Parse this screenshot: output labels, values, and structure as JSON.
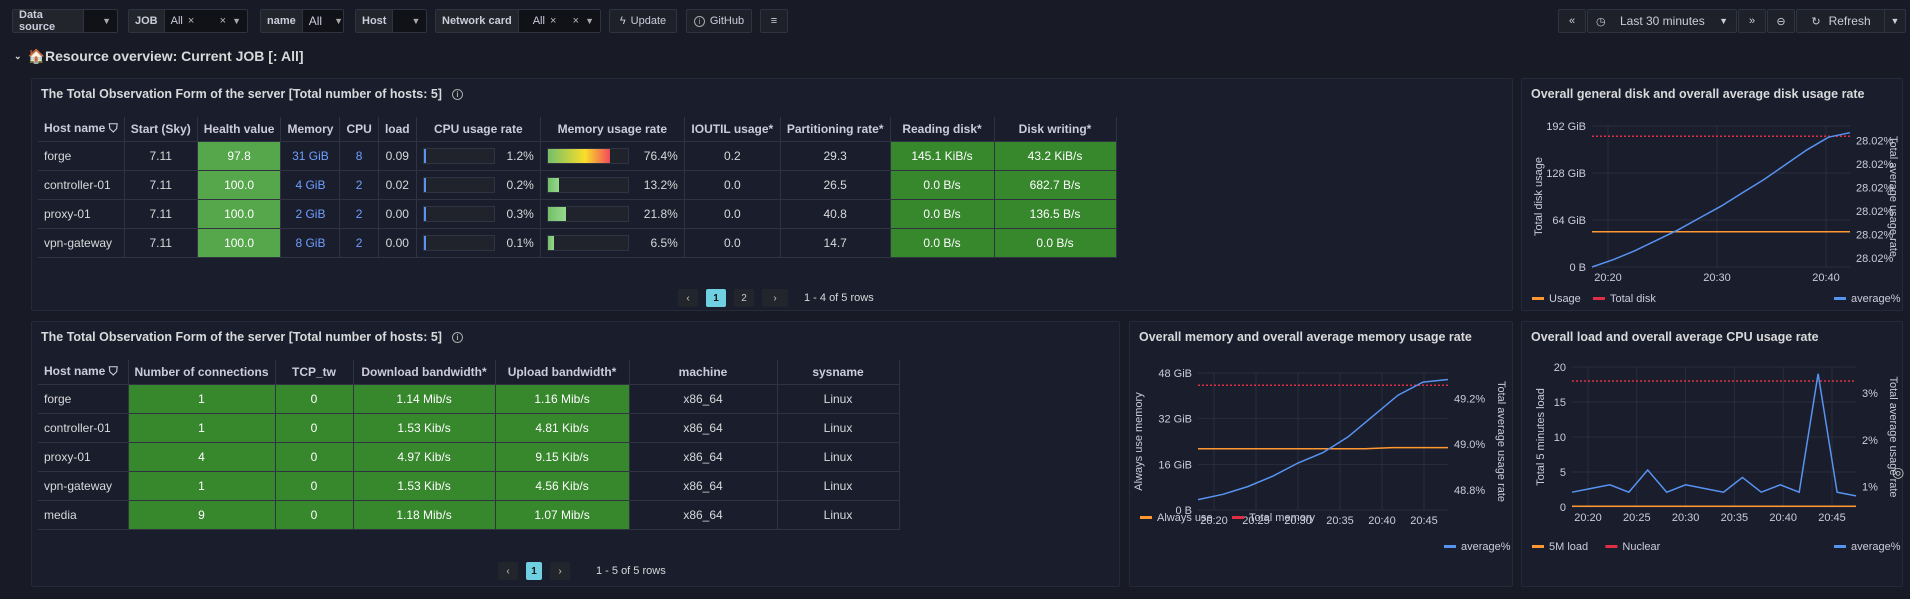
{
  "toolbar": {
    "data_source": {
      "label": "Data source",
      "value": ""
    },
    "job": {
      "label": "JOB",
      "value": "All"
    },
    "name": {
      "label": "name",
      "value": "All"
    },
    "host": {
      "label": "Host",
      "value": ""
    },
    "network_card": {
      "label": "Network card",
      "value": "All"
    },
    "update_label": "Update",
    "github_label": "GitHub",
    "time_range": "Last 30 minutes",
    "refresh_label": "Refresh"
  },
  "section": {
    "title": "🏠Resource overview: Current JOB [: All]"
  },
  "host_table": {
    "title": "The Total Observation Form of the server [Total number of hosts: 5]",
    "columns": [
      "Host name",
      "Start (Sky)",
      "Health value",
      "Memory",
      "CPU",
      "load",
      "CPU usage rate",
      "Memory usage rate",
      "IOUTIL usage*",
      "Partitioning rate*",
      "Reading disk*",
      "Disk writing*"
    ],
    "rows": [
      {
        "host": "forge",
        "start": "7.11",
        "health": "97.8",
        "memory": "31 GiB",
        "cpu": "8",
        "load": "0.09",
        "cpu_rate": "1.2%",
        "cpu_frac": 0.012,
        "mem_rate": "76.4%",
        "mem_frac": 0.764,
        "ioutil": "0.2",
        "part": "29.3",
        "read": "145.1 KiB/s",
        "write": "43.2 KiB/s"
      },
      {
        "host": "controller-01",
        "start": "7.11",
        "health": "100.0",
        "memory": "4 GiB",
        "cpu": "2",
        "load": "0.02",
        "cpu_rate": "0.2%",
        "cpu_frac": 0.002,
        "mem_rate": "13.2%",
        "mem_frac": 0.132,
        "ioutil": "0.0",
        "part": "26.5",
        "read": "0.0 B/s",
        "write": "682.7 B/s"
      },
      {
        "host": "proxy-01",
        "start": "7.11",
        "health": "100.0",
        "memory": "2 GiB",
        "cpu": "2",
        "load": "0.00",
        "cpu_rate": "0.3%",
        "cpu_frac": 0.003,
        "mem_rate": "21.8%",
        "mem_frac": 0.218,
        "ioutil": "0.0",
        "part": "40.8",
        "read": "0.0 B/s",
        "write": "136.5 B/s"
      },
      {
        "host": "vpn-gateway",
        "start": "7.11",
        "health": "100.0",
        "memory": "8 GiB",
        "cpu": "2",
        "load": "0.00",
        "cpu_rate": "0.1%",
        "cpu_frac": 0.001,
        "mem_rate": "6.5%",
        "mem_frac": 0.065,
        "ioutil": "0.0",
        "part": "14.7",
        "read": "0.0 B/s",
        "write": "0.0 B/s"
      }
    ],
    "pager": {
      "pages": [
        "1",
        "2"
      ],
      "current": "1",
      "summary": "1 - 4 of 5 rows"
    }
  },
  "net_table": {
    "title": "The Total Observation Form of the server [Total number of hosts: 5]",
    "columns": [
      "Host name",
      "Number of connections",
      "TCP_tw",
      "Download bandwidth*",
      "Upload bandwidth*",
      "machine",
      "sysname"
    ],
    "rows": [
      {
        "host": "forge",
        "conn": "1",
        "tcp": "0",
        "down": "1.14 Mib/s",
        "up": "1.16 Mib/s",
        "machine": "x86_64",
        "sys": "Linux"
      },
      {
        "host": "controller-01",
        "conn": "1",
        "tcp": "0",
        "down": "1.53 Kib/s",
        "up": "4.81 Kib/s",
        "machine": "x86_64",
        "sys": "Linux"
      },
      {
        "host": "proxy-01",
        "conn": "4",
        "tcp": "0",
        "down": "4.97 Kib/s",
        "up": "9.15 Kib/s",
        "machine": "x86_64",
        "sys": "Linux"
      },
      {
        "host": "vpn-gateway",
        "conn": "1",
        "tcp": "0",
        "down": "1.53 Kib/s",
        "up": "4.56 Kib/s",
        "machine": "x86_64",
        "sys": "Linux"
      },
      {
        "host": "media",
        "conn": "9",
        "tcp": "0",
        "down": "1.18 Mib/s",
        "up": "1.07 Mib/s",
        "machine": "x86_64",
        "sys": "Linux"
      }
    ],
    "pager": {
      "pages": [
        "1"
      ],
      "current": "1",
      "summary": "1 - 5 of 5 rows"
    }
  },
  "chart_data": [
    {
      "type": "line",
      "title": "Overall general disk and overall average disk usage rate",
      "ylabel": "Total disk usage",
      "y2label": "Total average usage rate",
      "x_ticks": [
        "20:20",
        "20:30",
        "20:40"
      ],
      "y_ticks": [
        "0 B",
        "64 GiB",
        "128 GiB",
        "192 GiB"
      ],
      "y2_ticks": [
        "28.02%",
        "28.02%",
        "28.02%",
        "28.02%",
        "28.02%",
        "28.02%"
      ],
      "ylim": [
        0,
        192
      ],
      "series": [
        {
          "name": "Usage",
          "color": "#ff9830",
          "axis": "left",
          "values": [
            48,
            48,
            48,
            48,
            48,
            48,
            48,
            48,
            48,
            48,
            48
          ]
        },
        {
          "name": "Total disk",
          "color": "#e02f44",
          "axis": "left",
          "dashed": true,
          "values": [
            178,
            178,
            178,
            178,
            178,
            178,
            178,
            178,
            178,
            178,
            178
          ]
        },
        {
          "name": "average%",
          "color": "#5794f2",
          "axis": "right",
          "values": [
            0,
            10,
            22,
            36,
            50,
            66,
            82,
            100,
            118,
            138,
            158,
            175,
            181
          ]
        }
      ],
      "legend": {
        "left": [
          "Usage",
          "Total disk"
        ],
        "right": [
          "average%"
        ]
      }
    },
    {
      "type": "line",
      "title": "Overall memory and overall average memory usage rate",
      "ylabel": "Always use memory",
      "y2label": "Total average usage rate",
      "x_ticks": [
        "20:20",
        "20:25",
        "20:30",
        "20:35",
        "20:40",
        "20:45"
      ],
      "y_ticks": [
        "0 B",
        "16 GiB",
        "32 GiB",
        "48 GiB"
      ],
      "y2_ticks": [
        "48.8%",
        "49.0%",
        "49.2%"
      ],
      "ylim": [
        0,
        56
      ],
      "series": [
        {
          "name": "Always use",
          "color": "#ff9830",
          "axis": "left",
          "values": [
            25,
            25,
            25,
            25,
            25,
            25,
            25,
            25.5,
            25.5,
            25.5
          ]
        },
        {
          "name": "Total memory",
          "color": "#e02f44",
          "axis": "left",
          "dashed": true,
          "values": [
            51,
            51,
            51,
            51,
            51,
            51,
            51,
            51,
            51,
            51
          ]
        },
        {
          "name": "average%",
          "color": "#5794f2",
          "axis": "right",
          "values": [
            4,
            6,
            9,
            13,
            18,
            22,
            28,
            36,
            44,
            49,
            50
          ]
        }
      ],
      "legend": {
        "left": [
          "Always use",
          "Total memory"
        ],
        "right": [
          "average%"
        ]
      }
    },
    {
      "type": "line",
      "title": "Overall load and overall average CPU usage rate",
      "ylabel": "Total 5 minutes load",
      "y2label": "Total average usage rate",
      "x_ticks": [
        "20:20",
        "20:25",
        "20:30",
        "20:35",
        "20:40",
        "20:45"
      ],
      "y_ticks": [
        "0",
        "5",
        "10",
        "15",
        "20"
      ],
      "y2_ticks": [
        "1%",
        "2%",
        "3%"
      ],
      "ylim": [
        0,
        20
      ],
      "series": [
        {
          "name": "5M load",
          "color": "#ff9830",
          "axis": "left",
          "values": [
            0.1,
            0.1,
            0.1,
            0.1,
            0.1,
            0.1,
            0.1,
            0.1,
            0.1,
            0.1
          ]
        },
        {
          "name": "Nuclear",
          "color": "#e02f44",
          "axis": "left",
          "dashed": true,
          "values": [
            18,
            18,
            18,
            18,
            18,
            18,
            18,
            18,
            18,
            18
          ]
        },
        {
          "name": "average%",
          "color": "#5794f2",
          "axis": "right",
          "values": [
            2,
            2.5,
            3,
            2,
            5,
            2,
            3,
            2.5,
            2,
            4,
            2,
            3,
            2,
            18,
            2,
            1.5
          ]
        }
      ],
      "legend": {
        "left": [
          "5M load",
          "Nuclear"
        ],
        "right": [
          "average%"
        ]
      }
    }
  ]
}
